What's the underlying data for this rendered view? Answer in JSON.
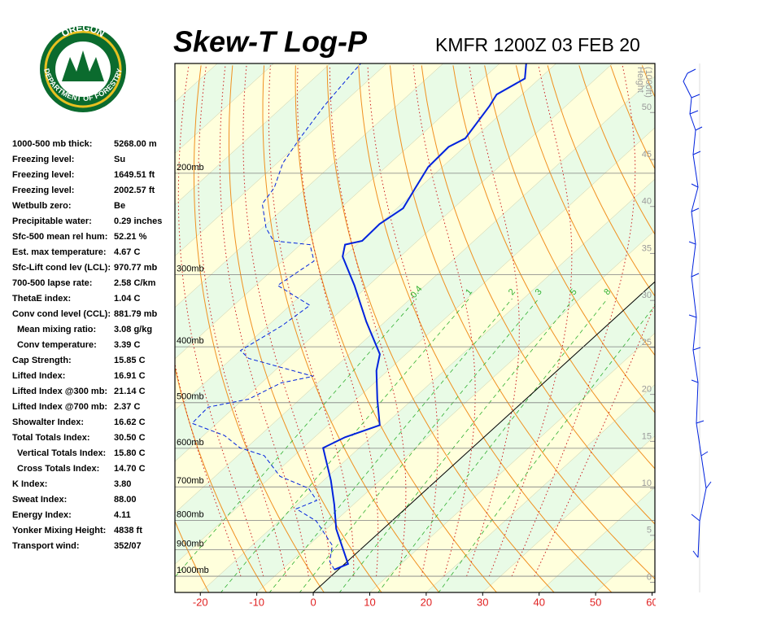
{
  "logo": {
    "top": "OREGON",
    "bottom": "DEPARTMENT OF FORESTRY"
  },
  "indices": [
    {
      "label": "1000-500 mb thick:",
      "value": "5268.00 m"
    },
    {
      "label": "Freezing level:",
      "value": "Su"
    },
    {
      "label": "Freezing level:",
      "value": "1649.51 ft"
    },
    {
      "label": "Freezing level:",
      "value": "2002.57 ft"
    },
    {
      "label": "Wetbulb zero:",
      "value": "Be"
    },
    {
      "label": "Precipitable water:",
      "value": "0.29 inches"
    },
    {
      "label": "Sfc-500 mean rel hum:",
      "value": "52.21 %"
    },
    {
      "label": "Est. max temperature:",
      "value": "4.67 C"
    },
    {
      "label": "Sfc-Lift cond lev (LCL):",
      "value": "970.77 mb"
    },
    {
      "label": "700-500 lapse rate:",
      "value": "2.58 C/km"
    },
    {
      "label": "ThetaE index:",
      "value": "1.04 C"
    },
    {
      "label": "Conv cond level (CCL):",
      "value": "881.79 mb"
    },
    {
      "label": "Mean mixing ratio:",
      "value": "3.08 g/kg"
    },
    {
      "label": "Conv temperature:",
      "value": "3.39 C"
    },
    {
      "label": "Cap Strength:",
      "value": "15.85 C"
    },
    {
      "label": "Lifted Index:",
      "value": "16.91 C"
    },
    {
      "label": "Lifted Index @300 mb:",
      "value": "21.14 C"
    },
    {
      "label": "Lifted Index @700 mb:",
      "value": "2.37 C"
    },
    {
      "label": "Showalter Index:",
      "value": "16.62 C"
    },
    {
      "label": "Total Totals Index:",
      "value": "30.50 C"
    },
    {
      "label": "Vertical Totals Index:",
      "value": "15.80 C"
    },
    {
      "label": "Cross Totals Index:",
      "value": "14.70 C"
    },
    {
      "label": "K Index:",
      "value": "3.80"
    },
    {
      "label": "Sweat Index:",
      "value": "88.00"
    },
    {
      "label": "Energy Index:",
      "value": "4.11"
    },
    {
      "label": "Yonker Mixing Height:",
      "value": "4838 ft"
    },
    {
      "label": "Transport wind:",
      "value": "352/07"
    }
  ],
  "chart_data": {
    "type": "skew-t",
    "title": "Skew-T Log-P",
    "subtitle": "KMFR 1200Z 03 FEB 20",
    "xlim": [
      -24.5,
      60.5
    ],
    "xticks": [
      -20,
      -10,
      0,
      10,
      20,
      30,
      40,
      50,
      60
    ],
    "ylim": [
      1067,
      129
    ],
    "log_scale": true,
    "yticks": [
      {
        "value": 1000,
        "label": "1000mb"
      },
      {
        "value": 900,
        "label": "900mb"
      },
      {
        "value": 800,
        "label": "800mb"
      },
      {
        "value": 700,
        "label": "700mb"
      },
      {
        "value": 600,
        "label": "600mb"
      },
      {
        "value": 500,
        "label": "500mb"
      },
      {
        "value": 400,
        "label": "400mb"
      },
      {
        "value": 300,
        "label": "300mb"
      },
      {
        "value": 200,
        "label": "200mb"
      }
    ],
    "y2_label": [
      "Height",
      "(1000ft)"
    ],
    "y2lim": [
      -1.6,
      54.7
    ],
    "y2ticks": [
      0,
      5,
      10,
      15,
      20,
      25,
      30,
      35,
      40,
      45,
      50
    ],
    "highlight_isotherm": 0,
    "mixing_ratio_lines": [
      {
        "value": 0.4,
        "label": "0.4"
      },
      1,
      2,
      3,
      5,
      8,
      16
    ],
    "series": [
      {
        "color": "#0022dd",
        "style": "solid",
        "pressure": [
          974,
          952,
          828,
          751,
          682,
          628,
          599,
          574,
          547,
          493,
          440,
          412,
          362,
          313,
          279,
          266,
          262,
          245,
          230,
          212,
          195,
          180,
          174,
          153,
          146,
          137,
          129
        ],
        "values": [
          -0.7,
          0.6,
          -8.3,
          -13.4,
          -18.7,
          -23.6,
          -26.4,
          -24.6,
          -20.8,
          -26.3,
          -32.0,
          -34.6,
          -43.3,
          -52.5,
          -60.2,
          -62.1,
          -59.8,
          -60.0,
          -58.9,
          -60.7,
          -62.5,
          -62.8,
          -61.5,
          -63.5,
          -64.5,
          -62.6,
          -65.3
        ]
      },
      {
        "color": "#0022dd",
        "style": "dashed",
        "pressure": [
          974,
          943,
          884,
          842,
          802,
          764,
          739,
          704,
          671,
          618,
          599,
          570,
          543,
          509,
          493,
          462,
          450,
          419,
          406,
          368,
          339,
          313,
          284,
          266,
          262,
          249,
          226,
          212,
          192,
          174,
          153,
          137,
          129
        ],
        "values": [
          -0.7,
          -3.1,
          -5.8,
          -9.6,
          -13.4,
          -19.3,
          -17.3,
          -21.1,
          -28.5,
          -35.3,
          -41.1,
          -46.3,
          -54.4,
          -54.7,
          -49.1,
          -46.5,
          -42.1,
          -57.0,
          -60.0,
          -57.5,
          -56.5,
          -66.1,
          -64.4,
          -68.3,
          -75.5,
          -79.3,
          -84.7,
          -85.7,
          -89.0,
          -90.8,
          -92.8,
          -94.0,
          -94.6
        ]
      }
    ]
  }
}
